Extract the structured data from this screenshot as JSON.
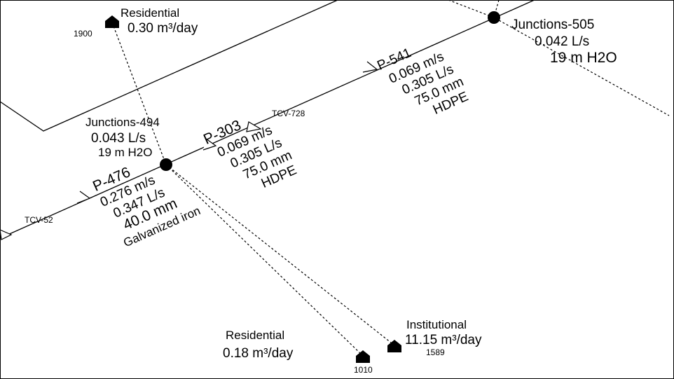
{
  "junctions": [
    {
      "label": "Junctions-494",
      "flow": "0.043 L/s",
      "head": "19 m H2O"
    },
    {
      "label": "Junctions-505",
      "flow": "0.042 L/s",
      "head": "19 m H2O"
    }
  ],
  "pipes": [
    {
      "label": "P-476",
      "velocity": "0.276 m/s",
      "flow": "0.347 L/s",
      "diameter": "40.0 mm",
      "material": "Galvanized iron"
    },
    {
      "label": "P-303",
      "velocity": "0.069 m/s",
      "flow": "0.305 L/s",
      "diameter": "75.0 mm",
      "material": "HDPE"
    },
    {
      "label": "P-541",
      "velocity": "0.069 m/s",
      "flow": "0.305 L/s",
      "diameter": "75.0 mm",
      "material": "HDPE"
    }
  ],
  "valves": [
    {
      "label": "TCV-52"
    },
    {
      "label": "TCV-728"
    }
  ],
  "demands": [
    {
      "type": "Residential",
      "demand": "0.30 m³/day",
      "id": "1900"
    },
    {
      "type": "Residential",
      "demand": "0.18 m³/day",
      "id": "1010"
    },
    {
      "type": "Institutional",
      "demand": "11.15 m³/day",
      "id": "1589"
    }
  ]
}
